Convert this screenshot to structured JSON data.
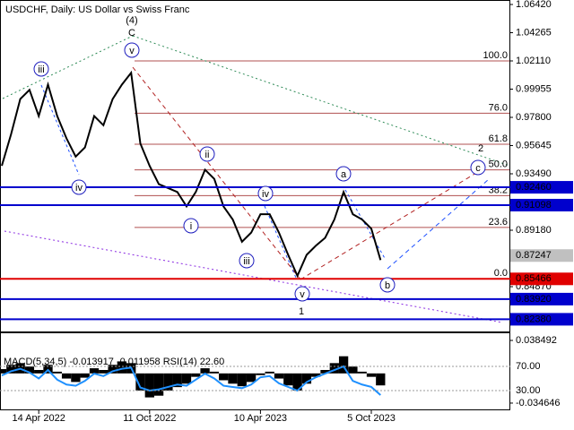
{
  "chart_data": {
    "type": "line",
    "title": "USDCHF, Daily:  US Dollar vs Swiss Franc",
    "categories": [
      null,
      null,
      null,
      null,
      "14 Apr 2022",
      null,
      null,
      null,
      null,
      null,
      null,
      null,
      null,
      null,
      null,
      null,
      "11 Oct 2022",
      null,
      null,
      null,
      null,
      null,
      null,
      null,
      null,
      null,
      null,
      null,
      "10 Apr 2023",
      null,
      null,
      null,
      null,
      null,
      null,
      null,
      null,
      null,
      null,
      null,
      "5 Oct 2023",
      null
    ],
    "series": [
      {
        "color": "#000000",
        "values": [
          0.941,
          0.965,
          0.992,
          0.999,
          0.979,
          1.003,
          0.979,
          0.962,
          0.948,
          0.955,
          0.979,
          0.972,
          0.992,
          1.003,
          1.012,
          0.958,
          0.941,
          0.927,
          0.924,
          0.921,
          0.91,
          0.921,
          0.938,
          0.931,
          0.91,
          0.9,
          0.883,
          0.89,
          0.904,
          0.904,
          0.89,
          0.873,
          0.857,
          0.873,
          0.88,
          0.886,
          0.9,
          0.921,
          0.904,
          0.9,
          0.893,
          0.869
        ]
      }
    ],
    "ylim": [
      0.8145,
      1.0642
    ],
    "yticks": [
      {
        "value": 1.0642,
        "label": "1.06420"
      },
      1.04265,
      {
        "value": 1.0211,
        "label": "1.02110"
      },
      0.99955,
      {
        "value": 0.978,
        "label": "0.97800"
      },
      0.95645,
      {
        "value": 0.9349,
        "label": "0.93490"
      },
      {
        "value": 0.8918,
        "label": "0.89180"
      },
      {
        "value": 0.8487,
        "label": "0.84870"
      }
    ],
    "levels": [
      {
        "value": 0.9246,
        "label": "0.92460",
        "color": "#0000cd"
      },
      {
        "value": 0.91098,
        "label": "0.91098",
        "color": "#0000cd"
      },
      {
        "value": 0.85466,
        "label": "0.85466",
        "color": "#e00000"
      },
      {
        "value": 0.8392,
        "label": "0.83920",
        "color": "#0000cd"
      },
      {
        "value": 0.8238,
        "label": "0.82380",
        "color": "#0000cd"
      }
    ],
    "price": {
      "value": 0.87247,
      "label": "0.87247",
      "color": "#c0c0c0"
    },
    "fib_levels": [
      {
        "value": 100,
        "label": "100.0"
      },
      {
        "value": 76,
        "label": "76.0"
      },
      {
        "value": 61.8,
        "label": "61.8"
      },
      {
        "value": 50,
        "label": "50.0"
      },
      {
        "value": 38.2,
        "label": "38.2"
      },
      {
        "value": 23.6,
        "label": "23.6"
      },
      {
        "value": 0,
        "label": "0.0"
      }
    ],
    "wave_labels": [
      "(4)",
      "C",
      "iii",
      "v",
      "iv",
      "ii",
      "i",
      "iv",
      "iii",
      "v",
      "1",
      "a",
      "b",
      "c",
      "2"
    ],
    "macd": {
      "type": "bar",
      "title": "MACD(5,34,5) -0.013917 -0.011958 RSI(14) 22.60",
      "ylim": [
        -0.042,
        0.0458
      ],
      "yticks": [
        0.038492,
        -0.034646
      ],
      "y2lim": [
        -1.1,
        123.3
      ],
      "y2ticks": [
        {
          "value": 70,
          "label": "70.00"
        },
        {
          "value": 30,
          "label": "30.00"
        }
      ],
      "series": [
        {
          "color": "#000000",
          "values": [
            0.005,
            0.01,
            0.012,
            0.008,
            0.004,
            0.01,
            0.002,
            -0.006,
            -0.01,
            -0.005,
            0.006,
            0.004,
            0.01,
            0.014,
            0.012,
            -0.02,
            -0.028,
            -0.026,
            -0.02,
            -0.016,
            -0.012,
            -0.004,
            0.006,
            0.002,
            -0.008,
            -0.012,
            -0.015,
            -0.01,
            -0.002,
            0.002,
            -0.006,
            -0.014,
            -0.02,
            -0.012,
            -0.004,
            0.004,
            0.012,
            0.02,
            0.008,
            0.002,
            -0.004,
            -0.014
          ]
        },
        {
          "color": "#1e90ff",
          "axis": "y2",
          "values": [
            55,
            62,
            66,
            60,
            50,
            64,
            48,
            40,
            38,
            46,
            58,
            54,
            62,
            66,
            68,
            35,
            30,
            32,
            36,
            40,
            38,
            48,
            58,
            50,
            38,
            36,
            34,
            40,
            52,
            54,
            42,
            36,
            30,
            44,
            52,
            58,
            64,
            70,
            46,
            40,
            36,
            22.6
          ]
        }
      ]
    }
  }
}
